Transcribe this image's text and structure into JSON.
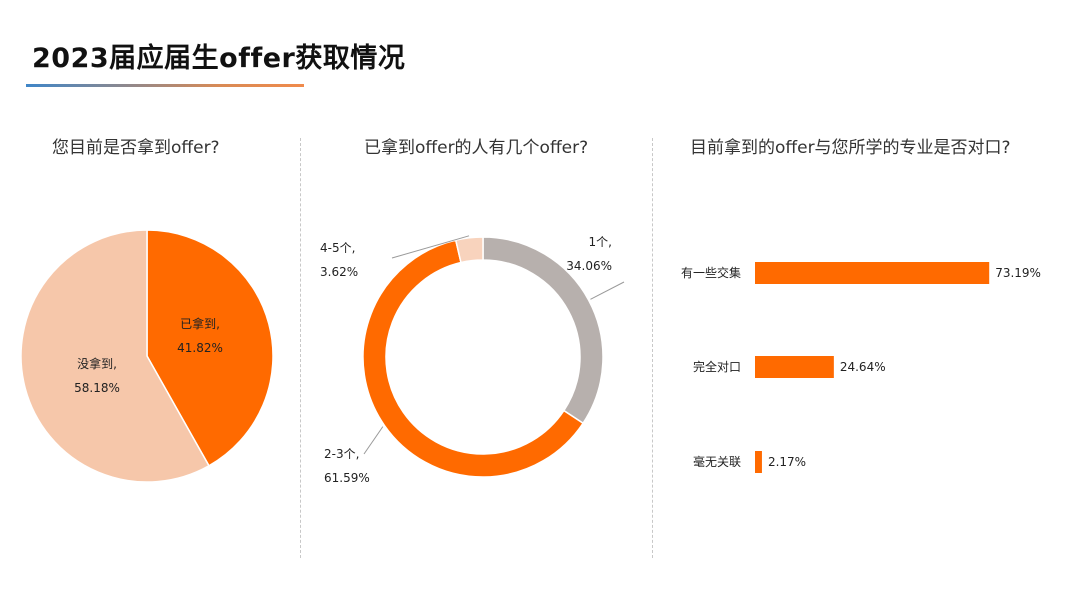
{
  "page": {
    "title": "2023届应届生offer获取情况"
  },
  "colors": {
    "orange": "#ff6a00",
    "peach": "#f6c7aa",
    "light_peach": "#f8d3bd",
    "gray": "#b7b0ad"
  },
  "chart_data": [
    {
      "type": "pie",
      "title": "您目前是否拿到offer?",
      "slices": [
        {
          "name": "已拿到",
          "label": "已拿到,",
          "value": 41.82,
          "value_label": "41.82%",
          "color": "#ff6a00"
        },
        {
          "name": "没拿到",
          "label": "没拿到,",
          "value": 58.18,
          "value_label": "58.18%",
          "color": "#f6c7aa"
        }
      ]
    },
    {
      "type": "pie",
      "donut": true,
      "title": "已拿到offer的人有几个offer?",
      "slices": [
        {
          "name": "1个",
          "label": "1个,",
          "value": 34.06,
          "value_label": "34.06%",
          "color": "#b7b0ad"
        },
        {
          "name": "2-3个",
          "label": "2-3个,",
          "value": 61.59,
          "value_label": "61.59%",
          "color": "#ff6a00"
        },
        {
          "name": "4-5个",
          "label": "4-5个,",
          "value": 3.62,
          "value_label": "3.62%",
          "color": "#f8d3bd"
        }
      ]
    },
    {
      "type": "bar",
      "orientation": "horizontal",
      "title": "目前拿到的offer与您所学的专业是否对口?",
      "categories": [
        "有一些交集",
        "完全对口",
        "毫无关联"
      ],
      "values": [
        73.19,
        24.64,
        2.17
      ],
      "value_labels": [
        "73.19%",
        "24.64%",
        "2.17%"
      ],
      "color": "#ff6a00",
      "xlim": [
        0,
        100
      ],
      "grid": false
    }
  ]
}
